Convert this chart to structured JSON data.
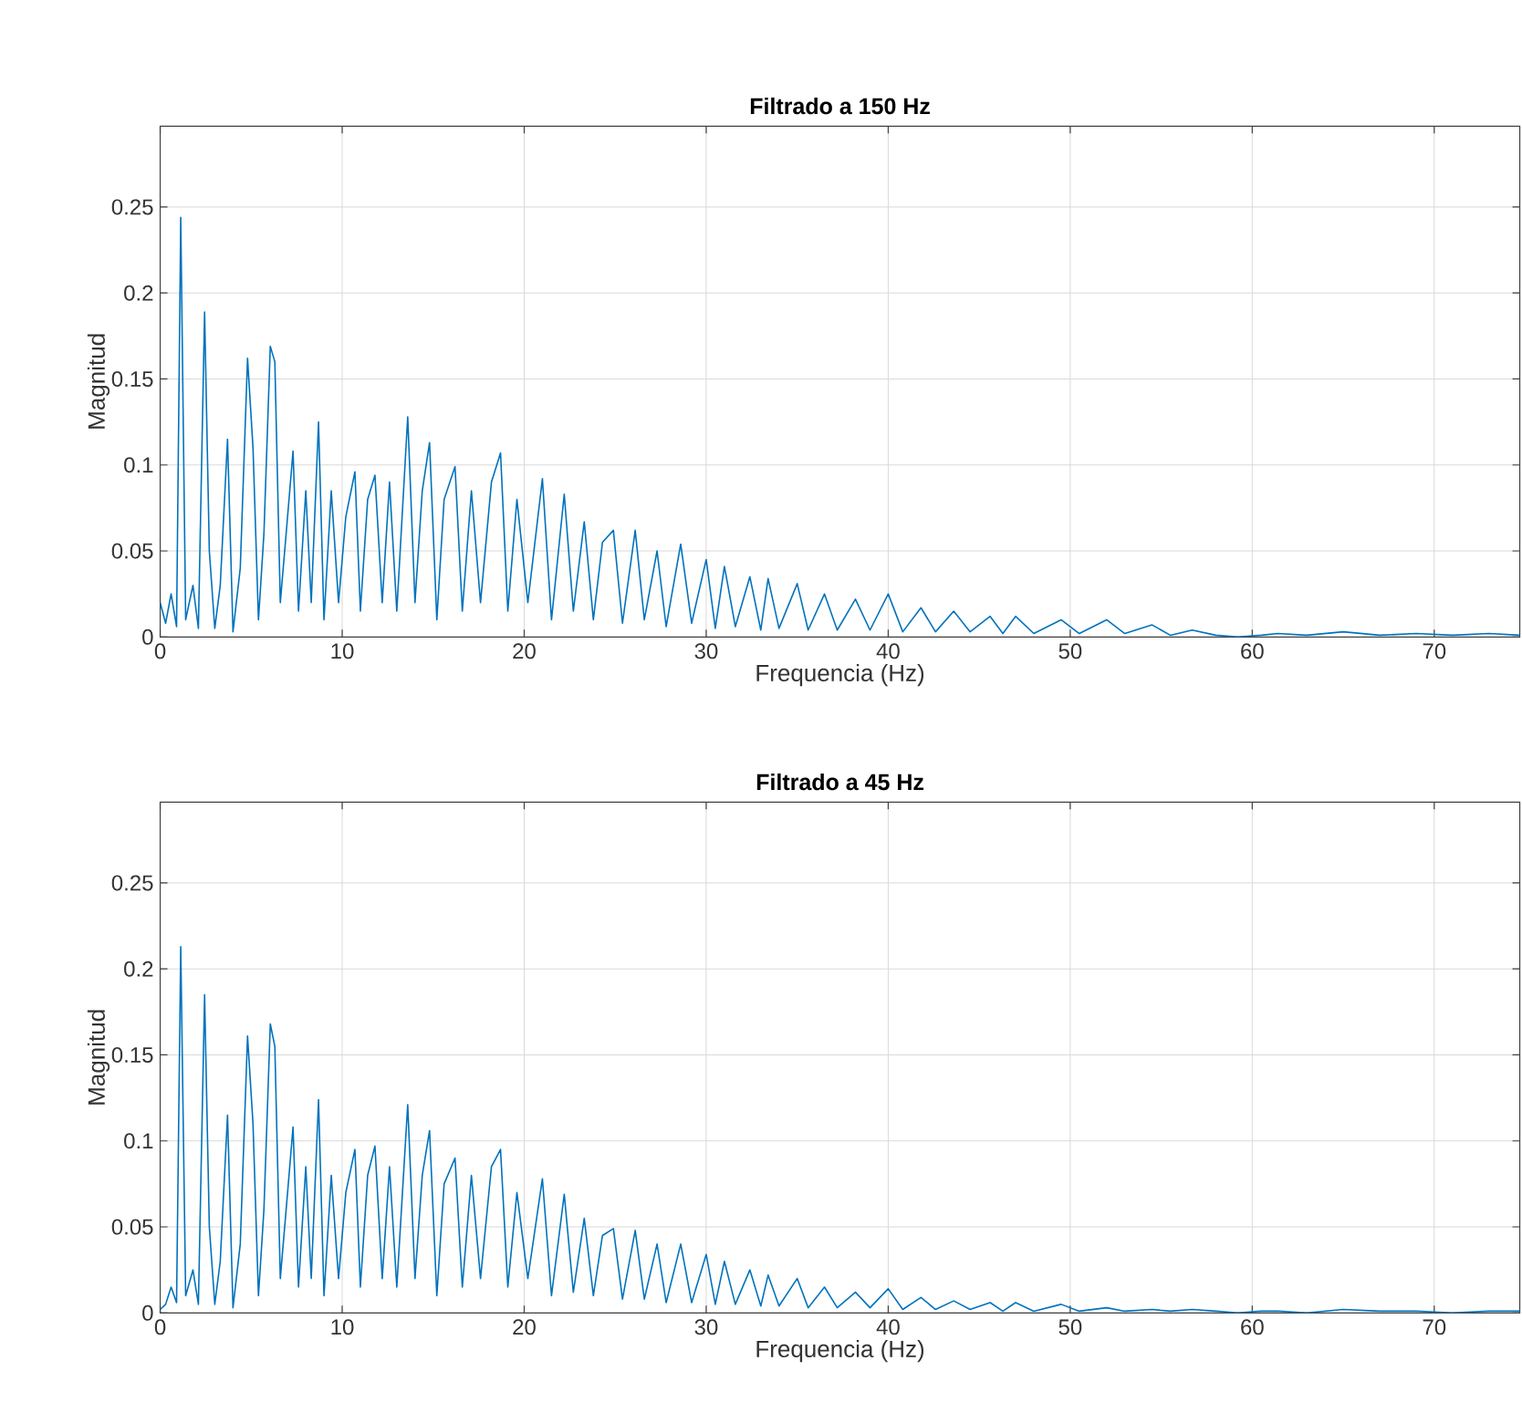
{
  "chart_data": [
    {
      "type": "line",
      "title": "Filtrado a 150 Hz",
      "xlabel": "Frequencia (Hz)",
      "ylabel": "Magnitud",
      "color": "#0072bd",
      "grid": true,
      "xlim": [
        0,
        74.7
      ],
      "ylim": [
        0,
        0.297
      ],
      "xticks": [
        0,
        10,
        20,
        30,
        40,
        50,
        60,
        70
      ],
      "yticks": [
        0,
        0.05,
        0.1,
        0.15,
        0.2,
        0.25
      ],
      "x": [
        0,
        0.3,
        0.6,
        0.9,
        1.13,
        1.4,
        1.8,
        2.1,
        2.44,
        2.7,
        3.0,
        3.3,
        3.7,
        4.0,
        4.4,
        4.8,
        5.1,
        5.4,
        5.7,
        6.05,
        6.3,
        6.6,
        7.0,
        7.3,
        7.6,
        8.0,
        8.3,
        8.7,
        9.0,
        9.4,
        9.8,
        10.2,
        10.7,
        11.0,
        11.4,
        11.8,
        12.2,
        12.6,
        13.0,
        13.6,
        14.0,
        14.4,
        14.8,
        15.2,
        15.6,
        16.2,
        16.6,
        17.1,
        17.6,
        18.2,
        18.7,
        19.1,
        19.6,
        20.2,
        21.0,
        21.5,
        22.2,
        22.7,
        23.3,
        23.8,
        24.3,
        24.9,
        25.4,
        26.1,
        26.6,
        27.3,
        27.8,
        28.6,
        29.2,
        30.0,
        30.5,
        31.0,
        31.6,
        32.4,
        33.0,
        33.4,
        34.0,
        35.0,
        35.6,
        36.5,
        37.2,
        38.2,
        39.0,
        40.0,
        40.8,
        41.8,
        42.6,
        43.6,
        44.5,
        45.6,
        46.3,
        47.0,
        48.0,
        49.5,
        50.5,
        52.0,
        53.0,
        54.5,
        55.5,
        56.7,
        58.0,
        59.2,
        60.5,
        61.4,
        63.0,
        65.0,
        67.0,
        69.0,
        71.0,
        73.0,
        74.7
      ],
      "values": [
        0.02,
        0.008,
        0.025,
        0.006,
        0.244,
        0.01,
        0.03,
        0.005,
        0.189,
        0.05,
        0.005,
        0.03,
        0.115,
        0.003,
        0.04,
        0.162,
        0.11,
        0.01,
        0.06,
        0.169,
        0.16,
        0.02,
        0.07,
        0.108,
        0.015,
        0.085,
        0.02,
        0.125,
        0.01,
        0.085,
        0.02,
        0.07,
        0.096,
        0.015,
        0.08,
        0.094,
        0.02,
        0.09,
        0.015,
        0.128,
        0.02,
        0.085,
        0.113,
        0.01,
        0.08,
        0.099,
        0.015,
        0.085,
        0.02,
        0.09,
        0.107,
        0.015,
        0.08,
        0.02,
        0.092,
        0.01,
        0.083,
        0.015,
        0.067,
        0.01,
        0.055,
        0.062,
        0.008,
        0.062,
        0.01,
        0.05,
        0.006,
        0.054,
        0.008,
        0.045,
        0.005,
        0.041,
        0.006,
        0.035,
        0.004,
        0.034,
        0.005,
        0.031,
        0.004,
        0.025,
        0.004,
        0.022,
        0.004,
        0.025,
        0.003,
        0.017,
        0.003,
        0.015,
        0.003,
        0.012,
        0.002,
        0.012,
        0.002,
        0.01,
        0.002,
        0.01,
        0.002,
        0.007,
        0.001,
        0.004,
        0.001,
        0.0,
        0.001,
        0.002,
        0.001,
        0.003,
        0.001,
        0.002,
        0.001,
        0.002,
        0.001
      ]
    },
    {
      "type": "line",
      "title": "Filtrado a 45 Hz",
      "xlabel": "Frequencia (Hz)",
      "ylabel": "Magnitud",
      "color": "#0072bd",
      "grid": true,
      "xlim": [
        0,
        74.7
      ],
      "ylim": [
        0,
        0.297
      ],
      "xticks": [
        0,
        10,
        20,
        30,
        40,
        50,
        60,
        70
      ],
      "yticks": [
        0,
        0.05,
        0.1,
        0.15,
        0.2,
        0.25
      ],
      "x": [
        0,
        0.3,
        0.6,
        0.9,
        1.13,
        1.4,
        1.8,
        2.1,
        2.44,
        2.7,
        3.0,
        3.3,
        3.7,
        4.0,
        4.4,
        4.8,
        5.1,
        5.4,
        5.7,
        6.05,
        6.3,
        6.6,
        7.0,
        7.3,
        7.6,
        8.0,
        8.3,
        8.7,
        9.0,
        9.4,
        9.8,
        10.2,
        10.7,
        11.0,
        11.4,
        11.8,
        12.2,
        12.6,
        13.0,
        13.6,
        14.0,
        14.4,
        14.8,
        15.2,
        15.6,
        16.2,
        16.6,
        17.1,
        17.6,
        18.2,
        18.7,
        19.1,
        19.6,
        20.2,
        21.0,
        21.5,
        22.2,
        22.7,
        23.3,
        23.8,
        24.3,
        24.9,
        25.4,
        26.1,
        26.6,
        27.3,
        27.8,
        28.6,
        29.2,
        30.0,
        30.5,
        31.0,
        31.6,
        32.4,
        33.0,
        33.4,
        34.0,
        35.0,
        35.6,
        36.5,
        37.2,
        38.2,
        39.0,
        40.0,
        40.8,
        41.8,
        42.6,
        43.6,
        44.5,
        45.6,
        46.3,
        47.0,
        48.0,
        49.5,
        50.5,
        52.0,
        53.0,
        54.5,
        55.5,
        56.7,
        58.0,
        59.2,
        60.5,
        61.4,
        63.0,
        65.0,
        67.0,
        69.0,
        71.0,
        73.0,
        74.7
      ],
      "values": [
        0.002,
        0.005,
        0.015,
        0.006,
        0.213,
        0.01,
        0.025,
        0.005,
        0.185,
        0.05,
        0.005,
        0.03,
        0.115,
        0.003,
        0.04,
        0.161,
        0.11,
        0.01,
        0.06,
        0.168,
        0.155,
        0.02,
        0.07,
        0.108,
        0.015,
        0.085,
        0.02,
        0.124,
        0.01,
        0.08,
        0.02,
        0.07,
        0.095,
        0.015,
        0.08,
        0.097,
        0.02,
        0.085,
        0.015,
        0.121,
        0.02,
        0.08,
        0.106,
        0.01,
        0.075,
        0.09,
        0.015,
        0.08,
        0.02,
        0.085,
        0.095,
        0.015,
        0.07,
        0.02,
        0.078,
        0.01,
        0.069,
        0.012,
        0.055,
        0.01,
        0.045,
        0.049,
        0.008,
        0.048,
        0.008,
        0.04,
        0.006,
        0.04,
        0.006,
        0.034,
        0.005,
        0.03,
        0.005,
        0.025,
        0.004,
        0.022,
        0.004,
        0.02,
        0.003,
        0.015,
        0.003,
        0.012,
        0.003,
        0.014,
        0.002,
        0.009,
        0.002,
        0.007,
        0.002,
        0.006,
        0.001,
        0.006,
        0.001,
        0.005,
        0.001,
        0.003,
        0.001,
        0.002,
        0.001,
        0.002,
        0.001,
        0.0,
        0.001,
        0.001,
        0.0,
        0.002,
        0.001,
        0.001,
        0.0,
        0.001,
        0.001
      ]
    }
  ]
}
